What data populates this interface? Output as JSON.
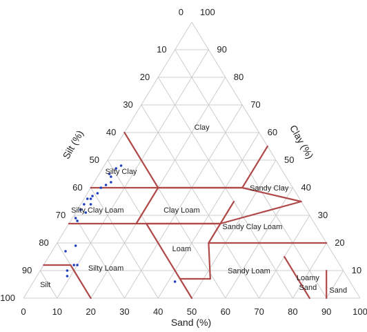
{
  "chart_data": {
    "type": "scatter",
    "subtype": "ternary soil texture triangle",
    "axes": {
      "bottom": {
        "label": "Sand (%)",
        "ticks": [
          "0",
          "10",
          "20",
          "30",
          "40",
          "50",
          "60",
          "70",
          "80",
          "90",
          "100"
        ]
      },
      "left": {
        "label": "Silt (%)",
        "ticks": [
          "100",
          "90",
          "80",
          "70",
          "60",
          "50",
          "40",
          "30",
          "20",
          "10"
        ]
      },
      "right": {
        "label": "Clay (%)",
        "ticks": [
          "0",
          "10",
          "20",
          "30",
          "40",
          "50",
          "60",
          "70",
          "80",
          "90",
          "100"
        ]
      }
    },
    "top_tick": "0",
    "grid": true,
    "regions": [
      {
        "name": "Clay",
        "sand": 22,
        "clay": 62
      },
      {
        "name": "Silty Clay",
        "sand": 6,
        "clay": 46
      },
      {
        "name": "Sandy Clay",
        "sand": 53,
        "clay": 40
      },
      {
        "name": "Silty Clay Loam",
        "sand": 6,
        "clay": 32
      },
      {
        "name": "Clay Loam",
        "sand": 31,
        "clay": 32
      },
      {
        "name": "Sandy Clay Loam",
        "sand": 55,
        "clay": 26
      },
      {
        "name": "Loam",
        "sand": 38,
        "clay": 18
      },
      {
        "name": "Silty Loam",
        "sand": 19,
        "clay": 11
      },
      {
        "name": "Sandy Loam",
        "sand": 62,
        "clay": 10
      },
      {
        "name": "Silt",
        "sand": 4,
        "clay": 5
      },
      {
        "name": "Loamy Sand",
        "sand": 82,
        "clay": 5
      },
      {
        "name": "Sand",
        "sand": 92,
        "clay": 3
      }
    ],
    "boundaries": [
      [
        [
          20,
          40
        ],
        [
          0,
          60
        ]
      ],
      [
        [
          20,
          40
        ],
        [
          45,
          40
        ]
      ],
      [
        [
          45,
          40
        ],
        [
          65,
          35
        ]
      ],
      [
        [
          45,
          40
        ],
        [
          45,
          55
        ]
      ],
      [
        [
          0,
          40
        ],
        [
          45,
          40
        ]
      ],
      [
        [
          20,
          27
        ],
        [
          20,
          40
        ]
      ],
      [
        [
          0,
          27
        ],
        [
          45,
          27
        ]
      ],
      [
        [
          45,
          27
        ],
        [
          65,
          35
        ]
      ],
      [
        [
          45,
          27
        ],
        [
          45,
          35
        ]
      ],
      [
        [
          23,
          27
        ],
        [
          45,
          27
        ]
      ],
      [
        [
          45,
          20
        ],
        [
          45,
          27
        ]
      ],
      [
        [
          45,
          20
        ],
        [
          80,
          20
        ]
      ],
      [
        [
          52,
          7
        ],
        [
          45,
          20
        ]
      ],
      [
        [
          52,
          7
        ],
        [
          43,
          7
        ]
      ],
      [
        [
          43,
          7
        ],
        [
          23,
          27
        ]
      ],
      [
        [
          0,
          12
        ],
        [
          8,
          12
        ]
      ],
      [
        [
          8,
          12
        ],
        [
          20,
          0
        ]
      ],
      [
        [
          50,
          0
        ],
        [
          43,
          7
        ]
      ],
      [
        [
          85,
          0
        ],
        [
          70,
          15
        ]
      ],
      [
        [
          90,
          0
        ],
        [
          85,
          10
        ]
      ]
    ],
    "samples": [
      {
        "sand": 5,
        "clay": 48
      },
      {
        "sand": 4,
        "clay": 47
      },
      {
        "sand": 3,
        "clay": 45
      },
      {
        "sand": 4,
        "clay": 44
      },
      {
        "sand": 5,
        "clay": 42
      },
      {
        "sand": 4,
        "clay": 41
      },
      {
        "sand": 3,
        "clay": 40
      },
      {
        "sand": 3,
        "clay": 38
      },
      {
        "sand": 2,
        "clay": 37
      },
      {
        "sand": 1,
        "clay": 36
      },
      {
        "sand": 2,
        "clay": 36
      },
      {
        "sand": 1,
        "clay": 34
      },
      {
        "sand": 3,
        "clay": 34
      },
      {
        "sand": 1,
        "clay": 32
      },
      {
        "sand": 3,
        "clay": 31
      },
      {
        "sand": 1,
        "clay": 29
      },
      {
        "sand": 2,
        "clay": 28
      },
      {
        "sand": 6,
        "clay": 19
      },
      {
        "sand": 4,
        "clay": 17
      },
      {
        "sand": 9,
        "clay": 12
      },
      {
        "sand": 10,
        "clay": 12
      },
      {
        "sand": 8,
        "clay": 10
      },
      {
        "sand": 9,
        "clay": 8
      },
      {
        "sand": 42,
        "clay": 6
      }
    ],
    "colors": {
      "grid": "#cccccc",
      "boundary": "#b04848",
      "point": "#1f3fbf",
      "text": "#222222"
    }
  }
}
